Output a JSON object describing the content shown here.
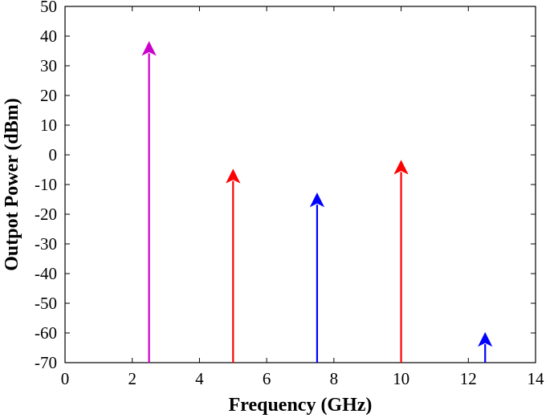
{
  "chart_data": {
    "type": "stem",
    "title": "",
    "xlabel": "Frequency (GHz)",
    "ylabel": "Outpot Power (dBm)",
    "xlim": [
      0,
      14
    ],
    "ylim": [
      -70,
      50
    ],
    "xticks": [
      0,
      2,
      4,
      6,
      8,
      10,
      12,
      14
    ],
    "yticks": [
      -70,
      -60,
      -50,
      -40,
      -30,
      -20,
      -10,
      0,
      10,
      20,
      30,
      40,
      50
    ],
    "grid": false,
    "series": [
      {
        "color": "#cc00cc",
        "points": [
          {
            "x": 2.5,
            "y": 38
          }
        ]
      },
      {
        "color": "#ff0000",
        "points": [
          {
            "x": 5.0,
            "y": -5
          },
          {
            "x": 10.0,
            "y": -2
          }
        ]
      },
      {
        "color": "#0000ff",
        "points": [
          {
            "x": 7.5,
            "y": -13
          },
          {
            "x": 12.5,
            "y": -60
          }
        ]
      }
    ]
  }
}
